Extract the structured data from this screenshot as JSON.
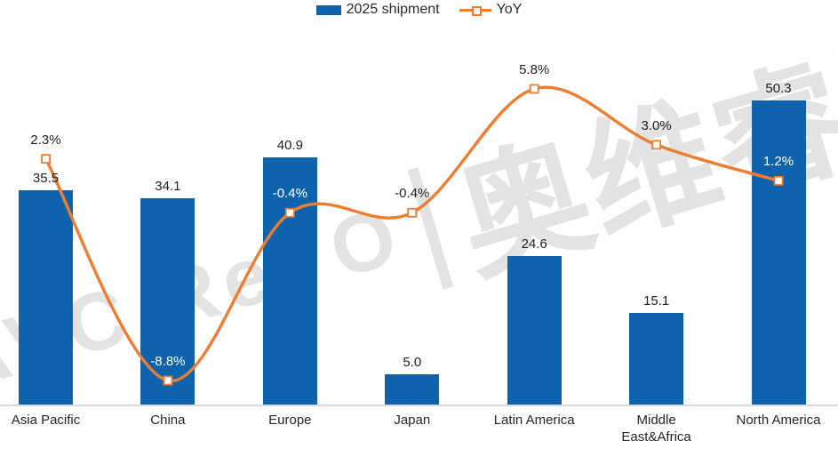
{
  "watermark": {
    "latin": "AVC ReVO",
    "separator": "|",
    "cjk": "奥维睿沃",
    "color": "#c9c9c9"
  },
  "colors": {
    "bar": "#0E63AC",
    "line": "#ED7D31",
    "axis_line": "#d8d8d8",
    "text": "#1f1f1f",
    "white_label": "#ffffff"
  },
  "chart_data": {
    "type": "bar+line combo",
    "title": "",
    "categories": [
      "Asia Pacific",
      "China",
      "Europe",
      "Japan",
      "Latin America",
      "Middle East&Africa",
      "North America"
    ],
    "series": [
      {
        "name": "2025 shipment",
        "type": "bar",
        "color": "#0E63AC",
        "values": [
          35.5,
          34.1,
          40.9,
          5.0,
          24.6,
          15.1,
          50.3
        ],
        "data_labels": [
          "35.5",
          "34.1",
          "40.9",
          "5.0",
          "24.6",
          "15.1",
          "50.3"
        ],
        "label_color": "#1f1f1f"
      },
      {
        "name": "YoY",
        "type": "line",
        "smooth": true,
        "color": "#ED7D31",
        "marker": "hollow-square",
        "values_pct": [
          2.3,
          -8.8,
          -0.4,
          -0.4,
          5.8,
          3.0,
          1.2
        ],
        "data_labels": [
          "2.3%",
          "-8.8%",
          "-0.4%",
          "-0.4%",
          "5.8%",
          "3.0%",
          "1.2%"
        ],
        "label_colors": [
          "#1f1f1f",
          "#ffffff",
          "#ffffff",
          "#1f1f1f",
          "#1f1f1f",
          "#1f1f1f",
          "#ffffff"
        ]
      }
    ],
    "axes": {
      "value_axes_visible": false,
      "gridlines": false,
      "bar_ylim": [
        0,
        67
      ],
      "line_ylim_pct": [
        -10,
        10
      ]
    },
    "legend_position": "top-center"
  }
}
